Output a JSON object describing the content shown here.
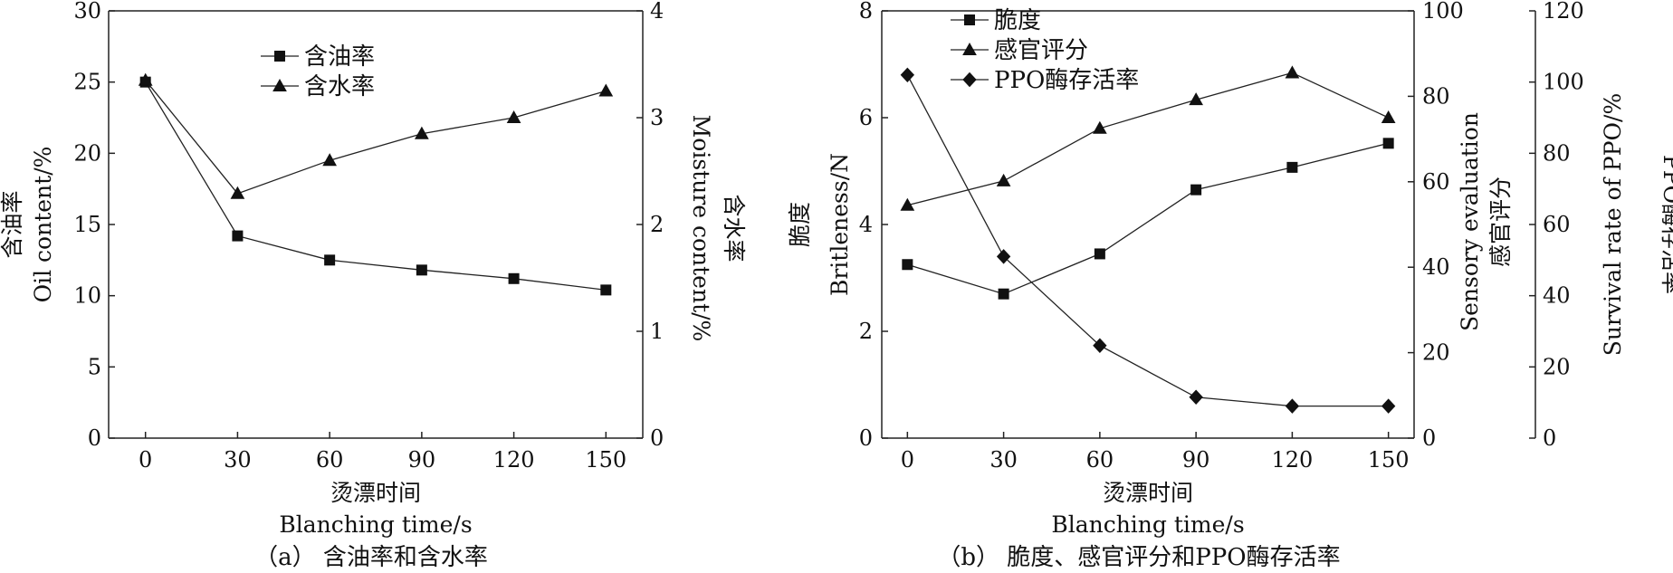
{
  "chart_data": [
    {
      "panel": "a",
      "type": "line",
      "caption": "（a） 含油率和含水率",
      "x": [
        0,
        30,
        60,
        90,
        120,
        150
      ],
      "xlabel_cn": "烫漂时间",
      "xlabel_en": "Blanching time/s",
      "x_ticks": [
        "0",
        "30",
        "60",
        "90",
        "120",
        "150"
      ],
      "xlim": [
        -12,
        162
      ],
      "legend_position": "top-center",
      "axes": [
        {
          "id": "left",
          "side": "left",
          "label_cn": "含油率",
          "label_en": "Oil content/%",
          "ylim": [
            0,
            30
          ],
          "ticks": [
            0,
            5,
            10,
            15,
            20,
            25,
            30
          ],
          "tick_labels": [
            "0",
            "5",
            "10",
            "15",
            "20",
            "25",
            "30"
          ]
        },
        {
          "id": "right",
          "side": "right",
          "label_cn": "含水率",
          "label_en": "Moisture content/%",
          "ylim": [
            0,
            4
          ],
          "ticks": [
            0,
            1,
            2,
            3,
            4
          ],
          "tick_labels": [
            "0",
            "1",
            "2",
            "3",
            "4"
          ]
        }
      ],
      "series": [
        {
          "name": "含油率",
          "marker": "square",
          "axis": "left",
          "values": [
            25.0,
            14.2,
            12.5,
            11.8,
            11.2,
            10.4
          ]
        },
        {
          "name": "含水率",
          "marker": "triangle",
          "axis": "right",
          "values": [
            3.35,
            2.29,
            2.6,
            2.85,
            3.0,
            3.25
          ]
        }
      ]
    },
    {
      "panel": "b",
      "type": "line",
      "caption": "（b） 脆度、感官评分和PPO酶存活率",
      "x": [
        0,
        30,
        60,
        90,
        120,
        150
      ],
      "xlabel_cn": "烫漂时间",
      "xlabel_en": "Blanching time/s",
      "x_ticks": [
        "0",
        "30",
        "60",
        "90",
        "120",
        "150"
      ],
      "xlim": [
        -8,
        158
      ],
      "legend_position": "top-left",
      "axes": [
        {
          "id": "left",
          "side": "left",
          "label_cn": "脆度",
          "label_en": "Britleness/N",
          "ylim": [
            0,
            8
          ],
          "ticks": [
            0,
            2,
            4,
            6,
            8
          ],
          "tick_labels": [
            "0",
            "2",
            "4",
            "6",
            "8"
          ]
        },
        {
          "id": "right1",
          "side": "right",
          "label_cn": "感官评分",
          "label_en": "Sensory evaluation",
          "ylim": [
            0,
            100
          ],
          "ticks": [
            0,
            20,
            40,
            60,
            80,
            100
          ],
          "tick_labels": [
            "0",
            "20",
            "40",
            "60",
            "80",
            "100"
          ]
        },
        {
          "id": "right2",
          "side": "right-outer",
          "label_cn": "PPO酶存活率",
          "label_en": "Survival rate of PPO/%",
          "ylim": [
            0,
            120
          ],
          "ticks": [
            0,
            20,
            40,
            60,
            80,
            100,
            120
          ],
          "tick_labels": [
            "0",
            "20",
            "40",
            "60",
            "80",
            "100",
            "120"
          ]
        }
      ],
      "series": [
        {
          "name": "脆度",
          "marker": "square",
          "axis": "left",
          "values": [
            3.25,
            2.7,
            3.45,
            4.65,
            5.07,
            5.52
          ]
        },
        {
          "name": "感官评分",
          "marker": "triangle",
          "axis": "right1",
          "values": [
            54.5,
            60.2,
            72.5,
            79.2,
            85.5,
            75.0
          ]
        },
        {
          "name": "PPO酶存活率",
          "marker": "diamond",
          "axis": "right2",
          "values": [
            102,
            51,
            26,
            11.5,
            9.0,
            9.0
          ]
        }
      ]
    }
  ]
}
